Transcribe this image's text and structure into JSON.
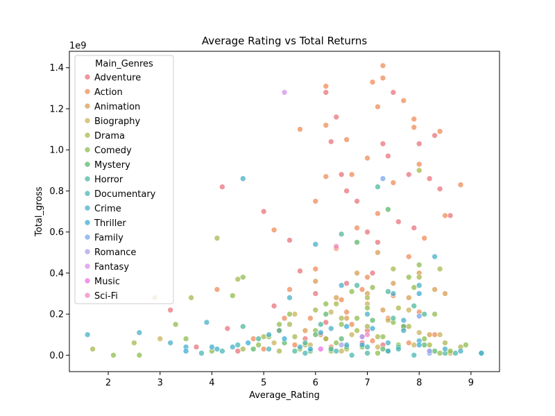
{
  "chart_data": {
    "type": "scatter",
    "title": "Average Rating vs Total Returns",
    "xlabel": "Average_Rating",
    "ylabel": "Total_gross",
    "y_multiplier_label": "1e9",
    "xlim": [
      1.25,
      9.55
    ],
    "ylim": [
      -0.08,
      1.48
    ],
    "xticks": [
      2,
      3,
      4,
      5,
      6,
      7,
      8,
      9
    ],
    "yticks": [
      0.0,
      0.2,
      0.4,
      0.6,
      0.8,
      1.0,
      1.2,
      1.4
    ],
    "ytick_labels": [
      "0.0",
      "0.2",
      "0.4",
      "0.6",
      "0.8",
      "1.0",
      "1.2",
      "1.4"
    ],
    "grid": false,
    "legend": {
      "title": "Main_Genres",
      "placement": "upper-left"
    },
    "series": [
      {
        "name": "Adventure",
        "color": "#e8747c",
        "points": [
          [
            3.2,
            0.22
          ],
          [
            4.2,
            0.82
          ],
          [
            5.0,
            0.7
          ],
          [
            5.5,
            0.56
          ],
          [
            6.2,
            1.28
          ],
          [
            6.3,
            1.04
          ],
          [
            6.4,
            1.16
          ],
          [
            6.5,
            0.88
          ],
          [
            6.6,
            0.8
          ],
          [
            6.8,
            0.75
          ],
          [
            7.0,
            0.6
          ],
          [
            7.2,
            0.55
          ],
          [
            7.3,
            1.03
          ],
          [
            7.4,
            0.97
          ],
          [
            7.5,
            1.28
          ],
          [
            7.6,
            0.65
          ],
          [
            7.8,
            0.88
          ],
          [
            7.9,
            0.62
          ],
          [
            8.0,
            1.03
          ],
          [
            8.2,
            0.86
          ],
          [
            8.3,
            1.07
          ],
          [
            8.4,
            0.81
          ],
          [
            8.6,
            0.68
          ],
          [
            5.7,
            0.41
          ],
          [
            6.0,
            0.3
          ],
          [
            6.6,
            0.35
          ],
          [
            7.1,
            0.4
          ],
          [
            4.3,
            0.13
          ],
          [
            5.2,
            0.24
          ],
          [
            6.2,
            0.16
          ],
          [
            7.0,
            0.12
          ],
          [
            7.7,
            0.14
          ],
          [
            5.8,
            0.08
          ],
          [
            6.9,
            0.06
          ],
          [
            7.3,
            0.05
          ],
          [
            3.7,
            0.04
          ],
          [
            4.5,
            0.02
          ]
        ]
      },
      {
        "name": "Action",
        "color": "#ef8c59",
        "points": [
          [
            4.1,
            0.32
          ],
          [
            5.2,
            0.61
          ],
          [
            5.7,
            1.1
          ],
          [
            6.0,
            0.75
          ],
          [
            6.2,
            1.31
          ],
          [
            6.2,
            1.12
          ],
          [
            6.2,
            0.87
          ],
          [
            6.6,
            1.05
          ],
          [
            6.7,
            0.88
          ],
          [
            7.0,
            0.96
          ],
          [
            7.1,
            1.33
          ],
          [
            7.2,
            1.21
          ],
          [
            7.3,
            1.41
          ],
          [
            7.3,
            1.35
          ],
          [
            7.5,
            0.84
          ],
          [
            7.7,
            1.24
          ],
          [
            7.9,
            1.15
          ],
          [
            7.9,
            1.11
          ],
          [
            8.0,
            0.93
          ],
          [
            8.4,
            1.09
          ],
          [
            8.8,
            0.83
          ],
          [
            8.5,
            0.68
          ],
          [
            5.5,
            0.32
          ],
          [
            6.0,
            0.42
          ],
          [
            6.4,
            0.52
          ],
          [
            6.8,
            0.62
          ],
          [
            7.2,
            0.69
          ],
          [
            7.8,
            0.48
          ],
          [
            8.1,
            0.57
          ],
          [
            5.9,
            0.18
          ],
          [
            6.5,
            0.27
          ],
          [
            7.0,
            0.38
          ],
          [
            7.5,
            0.29
          ],
          [
            4.8,
            0.08
          ],
          [
            5.3,
            0.12
          ],
          [
            6.1,
            0.1
          ],
          [
            6.7,
            0.15
          ],
          [
            7.4,
            0.18
          ],
          [
            8.0,
            0.21
          ],
          [
            8.3,
            0.1
          ],
          [
            5.0,
            0.03
          ],
          [
            5.6,
            0.05
          ],
          [
            6.3,
            0.04
          ],
          [
            7.1,
            0.07
          ],
          [
            7.8,
            0.06
          ],
          [
            6.6,
            0.21
          ],
          [
            6.9,
            0.32
          ],
          [
            5.4,
            0.18
          ]
        ]
      },
      {
        "name": "Animation",
        "color": "#d79d52",
        "points": [
          [
            6.0,
            0.36
          ],
          [
            6.4,
            0.28
          ],
          [
            6.8,
            0.4
          ],
          [
            7.0,
            0.3
          ],
          [
            7.2,
            0.5
          ],
          [
            7.5,
            0.35
          ],
          [
            7.8,
            0.28
          ],
          [
            8.0,
            0.4
          ],
          [
            8.3,
            0.32
          ],
          [
            8.5,
            0.3
          ],
          [
            6.6,
            0.18
          ],
          [
            7.3,
            0.22
          ],
          [
            7.7,
            0.13
          ],
          [
            8.2,
            0.1
          ],
          [
            6.2,
            0.08
          ],
          [
            5.8,
            0.12
          ]
        ]
      },
      {
        "name": "Biography",
        "color": "#c9b35b",
        "points": [
          [
            2.9,
            0.28
          ],
          [
            3.0,
            0.08
          ],
          [
            5.6,
            0.2
          ],
          [
            6.3,
            0.21
          ],
          [
            7.0,
            0.25
          ],
          [
            7.4,
            0.17
          ],
          [
            7.8,
            0.22
          ],
          [
            8.0,
            0.11
          ],
          [
            8.4,
            0.1
          ],
          [
            6.7,
            0.1
          ],
          [
            5.9,
            0.05
          ],
          [
            7.2,
            0.04
          ],
          [
            8.6,
            0.01
          ],
          [
            6.5,
            0.02
          ],
          [
            5.2,
            0.06
          ],
          [
            7.9,
            0.05
          ]
        ]
      },
      {
        "name": "Drama",
        "color": "#a9b74f",
        "points": [
          [
            1.7,
            0.03
          ],
          [
            2.5,
            0.06
          ],
          [
            3.6,
            0.28
          ],
          [
            4.1,
            0.57
          ],
          [
            4.5,
            0.37
          ],
          [
            5.0,
            0.09
          ],
          [
            5.5,
            0.15
          ],
          [
            6.0,
            0.22
          ],
          [
            6.5,
            0.18
          ],
          [
            7.0,
            0.28
          ],
          [
            7.5,
            0.42
          ],
          [
            8.0,
            0.9
          ],
          [
            8.0,
            0.38
          ],
          [
            8.4,
            0.42
          ],
          [
            8.8,
            0.04
          ],
          [
            6.2,
            0.08
          ],
          [
            6.8,
            0.12
          ],
          [
            7.2,
            0.09
          ],
          [
            7.8,
            0.14
          ],
          [
            5.8,
            0.05
          ],
          [
            6.6,
            0.03
          ],
          [
            7.4,
            0.02
          ],
          [
            8.2,
            0.05
          ],
          [
            4.6,
            0.03
          ],
          [
            5.3,
            0.02
          ],
          [
            7.0,
            0.14
          ],
          [
            6.4,
            0.25
          ],
          [
            7.6,
            0.23
          ],
          [
            8.5,
            0.06
          ],
          [
            5.6,
            0.09
          ]
        ]
      },
      {
        "name": "Comedy",
        "color": "#8fbc4f",
        "points": [
          [
            2.1,
            0.0
          ],
          [
            2.6,
            0.0
          ],
          [
            3.3,
            0.15
          ],
          [
            3.5,
            0.08
          ],
          [
            4.6,
            0.38
          ],
          [
            4.4,
            0.29
          ],
          [
            5.1,
            0.09
          ],
          [
            5.5,
            0.2
          ],
          [
            6.0,
            0.12
          ],
          [
            6.2,
            0.25
          ],
          [
            6.5,
            0.15
          ],
          [
            6.8,
            0.18
          ],
          [
            7.0,
            0.23
          ],
          [
            7.3,
            0.09
          ],
          [
            7.5,
            0.16
          ],
          [
            7.9,
            0.33
          ],
          [
            8.1,
            0.08
          ],
          [
            8.3,
            0.2
          ],
          [
            8.9,
            0.05
          ],
          [
            5.7,
            0.03
          ],
          [
            6.4,
            0.06
          ],
          [
            6.9,
            0.04
          ],
          [
            7.6,
            0.05
          ],
          [
            8.6,
            0.02
          ],
          [
            4.9,
            0.05
          ],
          [
            5.3,
            0.15
          ],
          [
            6.7,
            0.31
          ],
          [
            7.1,
            0.33
          ],
          [
            7.8,
            0.38
          ],
          [
            8.0,
            0.44
          ],
          [
            6.3,
            0.02
          ],
          [
            7.2,
            0.01
          ],
          [
            8.4,
            0.01
          ],
          [
            4.0,
            0.02
          ]
        ]
      },
      {
        "name": "Mystery",
        "color": "#5cb86c",
        "points": [
          [
            4.8,
            0.03
          ],
          [
            5.4,
            0.06
          ],
          [
            6.0,
            0.1
          ],
          [
            6.5,
            0.08
          ],
          [
            6.8,
            0.55
          ],
          [
            7.1,
            0.17
          ],
          [
            7.4,
            0.71
          ],
          [
            7.7,
            0.14
          ],
          [
            8.1,
            0.05
          ],
          [
            5.9,
            0.02
          ],
          [
            6.6,
            0.04
          ],
          [
            7.3,
            0.03
          ],
          [
            8.3,
            0.02
          ],
          [
            6.2,
            0.2
          ]
        ]
      },
      {
        "name": "Horror",
        "color": "#4db89c",
        "points": [
          [
            4.6,
            0.14
          ],
          [
            4.9,
            0.08
          ],
          [
            5.3,
            0.12
          ],
          [
            5.8,
            0.06
          ],
          [
            6.5,
            0.59
          ],
          [
            6.8,
            0.34
          ],
          [
            7.2,
            0.82
          ],
          [
            7.4,
            0.31
          ],
          [
            7.9,
            0.24
          ],
          [
            8.1,
            0.2
          ],
          [
            5.6,
            0.02
          ],
          [
            6.3,
            0.03
          ],
          [
            7.0,
            0.01
          ],
          [
            7.6,
            0.04
          ],
          [
            8.5,
            0.01
          ],
          [
            6.1,
            0.15
          ],
          [
            7.5,
            0.18
          ]
        ]
      },
      {
        "name": "Documentary",
        "color": "#4ab7b4",
        "points": [
          [
            3.8,
            0.01
          ],
          [
            4.2,
            0.02
          ],
          [
            4.5,
            0.05
          ],
          [
            5.1,
            0.03
          ],
          [
            5.8,
            0.01
          ],
          [
            6.4,
            0.02
          ],
          [
            7.0,
            0.04
          ],
          [
            7.6,
            0.03
          ],
          [
            8.2,
            0.02
          ],
          [
            8.7,
            0.01
          ],
          [
            9.2,
            0.01
          ],
          [
            6.7,
            0.0
          ],
          [
            7.9,
            0.0
          ]
        ]
      },
      {
        "name": "Crime",
        "color": "#48afc8",
        "points": [
          [
            1.6,
            0.1
          ],
          [
            2.6,
            0.11
          ],
          [
            3.2,
            0.06
          ],
          [
            3.9,
            0.16
          ],
          [
            4.6,
            0.86
          ],
          [
            5.5,
            0.28
          ],
          [
            6.0,
            0.54
          ],
          [
            6.5,
            0.34
          ],
          [
            7.0,
            0.2
          ],
          [
            7.5,
            0.3
          ],
          [
            8.0,
            0.34
          ],
          [
            8.3,
            0.48
          ],
          [
            8.8,
            0.02
          ],
          [
            9.2,
            0.01
          ],
          [
            5.1,
            0.1
          ],
          [
            6.3,
            0.13
          ],
          [
            6.9,
            0.09
          ],
          [
            7.7,
            0.12
          ],
          [
            8.0,
            0.07
          ],
          [
            4.1,
            0.03
          ],
          [
            5.7,
            0.04
          ],
          [
            6.6,
            0.05
          ],
          [
            7.4,
            0.06
          ],
          [
            8.5,
            0.03
          ],
          [
            3.5,
            0.04
          ],
          [
            4.4,
            0.04
          ]
        ]
      },
      {
        "name": "Thriller",
        "color": "#3dacd6",
        "points": [
          [
            3.5,
            0.02
          ],
          [
            4.0,
            0.04
          ],
          [
            4.7,
            0.06
          ],
          [
            5.4,
            0.08
          ],
          [
            6.1,
            0.11
          ],
          [
            6.6,
            0.14
          ],
          [
            7.1,
            0.13
          ],
          [
            7.7,
            0.17
          ],
          [
            8.0,
            0.3
          ],
          [
            8.0,
            0.05
          ],
          [
            5.9,
            0.03
          ],
          [
            6.9,
            0.05
          ],
          [
            7.4,
            0.02
          ]
        ]
      },
      {
        "name": "Family",
        "color": "#7ba6f2",
        "points": [
          [
            7.3,
            0.86
          ],
          [
            8.0,
            0.19
          ],
          [
            8.2,
            0.01
          ]
        ]
      },
      {
        "name": "Romance",
        "color": "#a9a1ea",
        "points": [
          [
            6.5,
            0.05
          ],
          [
            8.2,
            0.02
          ]
        ]
      },
      {
        "name": "Fantasy",
        "color": "#d690ec",
        "points": [
          [
            5.4,
            1.28
          ],
          [
            6.9,
            0.09
          ]
        ]
      },
      {
        "name": "Music",
        "color": "#ec6fe0",
        "points": [
          [
            6.1,
            0.03
          ]
        ]
      },
      {
        "name": "Sci-Fi",
        "color": "#f185c0",
        "points": [
          [
            6.4,
            0.53
          ],
          [
            7.0,
            0.1
          ]
        ]
      }
    ]
  }
}
